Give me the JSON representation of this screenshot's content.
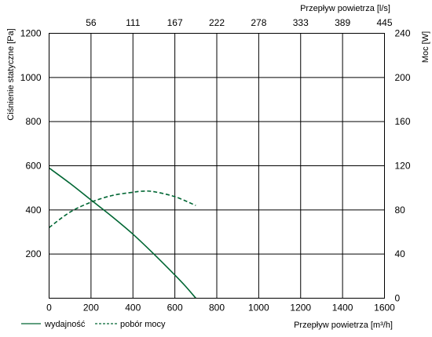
{
  "chart_data": {
    "type": "line",
    "xlabel_bottom": "Przepływ powietrza [m³/h]",
    "xlabel_top": "Przepływ powietrza [l/s]",
    "ylabel_left": "Ciśnienie statyczne [Pa]",
    "ylabel_right": "Moc [W]",
    "x_ticks": [
      "0",
      "200",
      "400",
      "600",
      "800",
      "1000",
      "1200",
      "1400",
      "1600"
    ],
    "x_top_ticks": [
      "56",
      "111",
      "167",
      "222",
      "278",
      "333",
      "389",
      "445"
    ],
    "y_left_ticks": [
      "200",
      "400",
      "600",
      "800",
      "1000",
      "1200"
    ],
    "y_right_ticks": [
      "0",
      "40",
      "80",
      "120",
      "160",
      "200",
      "240"
    ],
    "xlim": [
      0,
      1600
    ],
    "ylim": [
      0,
      1200
    ],
    "y_right_lim": [
      0,
      240
    ],
    "grid": true,
    "legend_position": "bottom-left",
    "series": [
      {
        "name": "wydajność",
        "style": "solid",
        "color": "#006633",
        "axis": "left",
        "x": [
          0,
          100,
          200,
          300,
          400,
          500,
          600,
          650,
          700
        ],
        "y": [
          590,
          520,
          445,
          370,
          290,
          200,
          105,
          55,
          0
        ]
      },
      {
        "name": "pobór mocy",
        "style": "dashed",
        "color": "#006633",
        "axis": "right",
        "x": [
          0,
          100,
          200,
          300,
          400,
          450,
          500,
          600,
          700
        ],
        "y": [
          64,
          78,
          87,
          93,
          96,
          97,
          96.5,
          92,
          84
        ]
      }
    ]
  }
}
